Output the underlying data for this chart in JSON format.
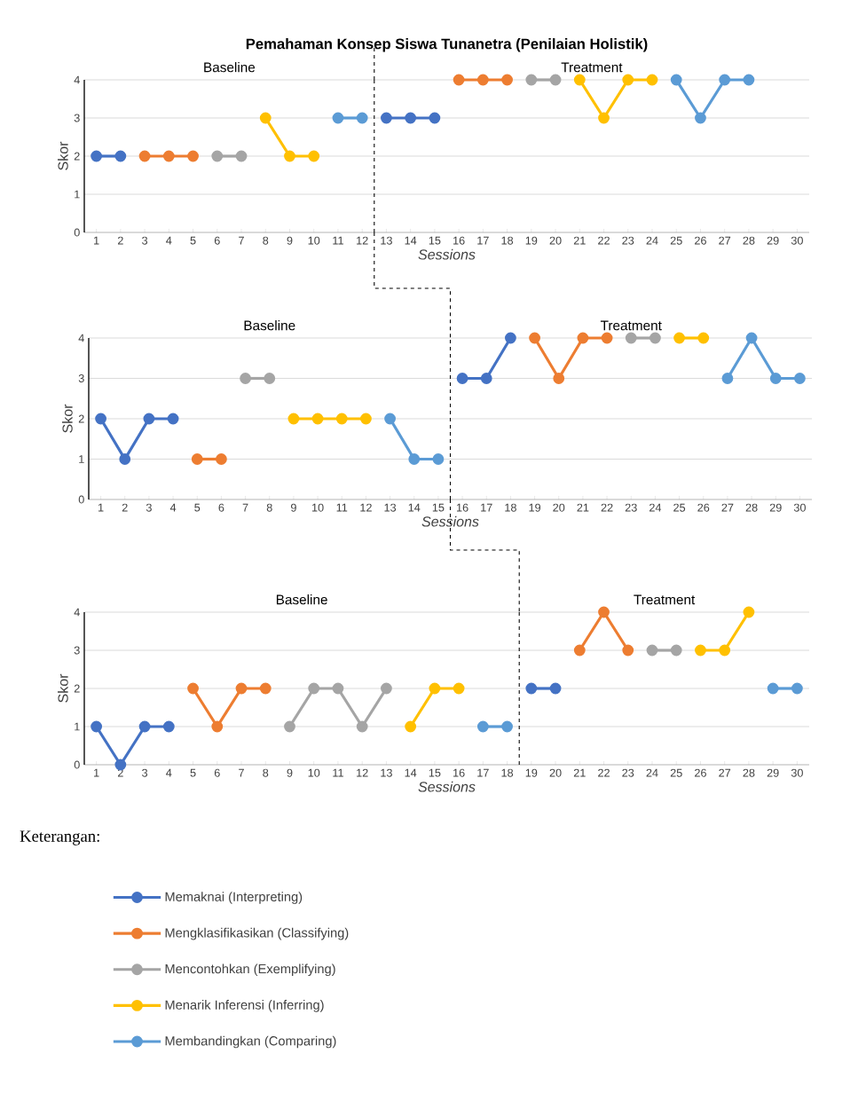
{
  "chart_data": [
    {
      "type": "line",
      "title": "Pemahaman Konsep Siswa Tunanetra (Penilaian Holistik)",
      "xlabel": "*Sessions*",
      "ylabel": "Skor",
      "annotations": [
        "Baseline",
        "Treatment"
      ],
      "xlim": [
        0.5,
        30.5
      ],
      "xticks": [
        1,
        2,
        3,
        4,
        5,
        6,
        7,
        8,
        9,
        10,
        11,
        12,
        13,
        14,
        15,
        16,
        17,
        18,
        19,
        20,
        21,
        22,
        23,
        24,
        25,
        26,
        27,
        28,
        29,
        30
      ],
      "ylim": [
        0,
        4
      ],
      "yticks": [
        0,
        1,
        2,
        3,
        4
      ],
      "grid": "y",
      "marker": "circle",
      "line_style": "solid",
      "ref_lines": [
        {
          "axis": "x",
          "value": 12.5,
          "line_style": "dashed",
          "color": "#000000"
        }
      ],
      "series": [
        {
          "color": "#4472c4",
          "x": [
            1,
            2
          ],
          "values": [
            2,
            2
          ]
        },
        {
          "color": "#ed7d31",
          "x": [
            3,
            4,
            5
          ],
          "values": [
            2,
            2,
            2
          ]
        },
        {
          "color": "#a5a5a5",
          "x": [
            6,
            7
          ],
          "values": [
            2,
            2
          ]
        },
        {
          "color": "#ffc000",
          "x": [
            8,
            9,
            10
          ],
          "values": [
            3,
            2,
            2
          ]
        },
        {
          "color": "#5b9bd5",
          "x": [
            11,
            12
          ],
          "values": [
            3,
            3
          ]
        },
        {
          "color": "#4472c4",
          "x": [
            13,
            14,
            15
          ],
          "values": [
            3,
            3,
            3
          ]
        },
        {
          "color": "#ed7d31",
          "x": [
            16,
            17,
            18
          ],
          "values": [
            4,
            4,
            4
          ]
        },
        {
          "color": "#a5a5a5",
          "x": [
            19,
            20
          ],
          "values": [
            4,
            4
          ]
        },
        {
          "color": "#ffc000",
          "x": [
            21,
            22,
            23,
            24
          ],
          "values": [
            4,
            3,
            4,
            4
          ]
        },
        {
          "color": "#5b9bd5",
          "x": [
            25,
            26,
            27,
            28
          ],
          "values": [
            4,
            3,
            4,
            4
          ]
        }
      ]
    },
    {
      "type": "line",
      "xlabel": "*Sessions*",
      "ylabel": "Skor",
      "annotations": [
        "Baseline",
        "Treatment"
      ],
      "xlim": [
        0.5,
        30.5
      ],
      "xticks": [
        1,
        2,
        3,
        4,
        5,
        6,
        7,
        8,
        9,
        10,
        11,
        12,
        13,
        14,
        15,
        16,
        17,
        18,
        19,
        20,
        21,
        22,
        23,
        24,
        25,
        26,
        27,
        28,
        29,
        30
      ],
      "ylim": [
        0,
        4
      ],
      "yticks": [
        0,
        1,
        2,
        3,
        4
      ],
      "grid": "y",
      "marker": "circle",
      "line_style": "solid",
      "ref_lines": [
        {
          "axis": "x",
          "value": 15.5,
          "line_style": "dashed",
          "color": "#000000"
        }
      ],
      "series": [
        {
          "color": "#4472c4",
          "x": [
            1,
            2,
            3,
            4
          ],
          "values": [
            2,
            1,
            2,
            2
          ]
        },
        {
          "color": "#ed7d31",
          "x": [
            5,
            6
          ],
          "values": [
            1,
            1
          ]
        },
        {
          "color": "#a5a5a5",
          "x": [
            7,
            8
          ],
          "values": [
            3,
            3
          ]
        },
        {
          "color": "#ffc000",
          "x": [
            9,
            10,
            11,
            12
          ],
          "values": [
            2,
            2,
            2,
            2
          ]
        },
        {
          "color": "#5b9bd5",
          "x": [
            13,
            14,
            15
          ],
          "values": [
            2,
            1,
            1
          ]
        },
        {
          "color": "#4472c4",
          "x": [
            16,
            17,
            18
          ],
          "values": [
            3,
            3,
            4
          ]
        },
        {
          "color": "#ed7d31",
          "x": [
            19,
            20,
            21,
            22
          ],
          "values": [
            4,
            3,
            4,
            4
          ]
        },
        {
          "color": "#a5a5a5",
          "x": [
            23,
            24
          ],
          "values": [
            4,
            4
          ]
        },
        {
          "color": "#ffc000",
          "x": [
            25,
            26
          ],
          "values": [
            4,
            4
          ]
        },
        {
          "color": "#5b9bd5",
          "x": [
            27,
            28,
            29,
            30
          ],
          "values": [
            3,
            4,
            3,
            3
          ]
        }
      ]
    },
    {
      "type": "line",
      "xlabel": "*Sessions*",
      "ylabel": "Skor",
      "annotations": [
        "Baseline",
        "Treatment"
      ],
      "legend": "bottom",
      "legend_title": "Keterangan:",
      "xlim": [
        0.5,
        30.5
      ],
      "xticks": [
        1,
        2,
        3,
        4,
        5,
        6,
        7,
        8,
        9,
        10,
        11,
        12,
        13,
        14,
        15,
        16,
        17,
        18,
        19,
        20,
        21,
        22,
        23,
        24,
        25,
        26,
        27,
        28,
        29,
        30
      ],
      "ylim": [
        0,
        4
      ],
      "yticks": [
        0,
        1,
        2,
        3,
        4
      ],
      "grid": "y",
      "marker": "circle",
      "line_style": "solid",
      "ref_lines": [
        {
          "axis": "x",
          "value": 18.5,
          "line_style": "dashed",
          "color": "#000000"
        }
      ],
      "series": [
        {
          "name": "Memaknai (Interpreting)",
          "color": "#4472c4",
          "x": [
            1,
            2,
            3,
            4
          ],
          "values": [
            1,
            0,
            1,
            1
          ]
        },
        {
          "name": "Mengklasifikasikan (Classifying)",
          "color": "#ed7d31",
          "x": [
            5,
            6,
            7,
            8
          ],
          "values": [
            2,
            1,
            2,
            2
          ]
        },
        {
          "name": "Mencontohkan (Exemplifying)",
          "color": "#a5a5a5",
          "x": [
            9,
            10,
            11,
            12,
            13
          ],
          "values": [
            1,
            2,
            2,
            1,
            2
          ]
        },
        {
          "name": "Menarik Inferensi (Inferring)",
          "color": "#ffc000",
          "x": [
            14,
            15,
            16
          ],
          "values": [
            1,
            2,
            2
          ]
        },
        {
          "name": "Membandingkan (Comparing)",
          "color": "#5b9bd5",
          "x": [
            17,
            18
          ],
          "values": [
            1,
            1
          ]
        },
        {
          "color": "#4472c4",
          "x": [
            19,
            20
          ],
          "values": [
            2,
            2
          ]
        },
        {
          "color": "#ed7d31",
          "x": [
            21,
            22,
            23
          ],
          "values": [
            3,
            4,
            3
          ]
        },
        {
          "color": "#a5a5a5",
          "x": [
            24,
            25
          ],
          "values": [
            3,
            3
          ]
        },
        {
          "color": "#ffc000",
          "x": [
            26,
            27,
            28
          ],
          "values": [
            3,
            3,
            4
          ]
        },
        {
          "color": "#5b9bd5",
          "x": [
            29,
            30
          ],
          "values": [
            2,
            2
          ]
        }
      ]
    }
  ]
}
